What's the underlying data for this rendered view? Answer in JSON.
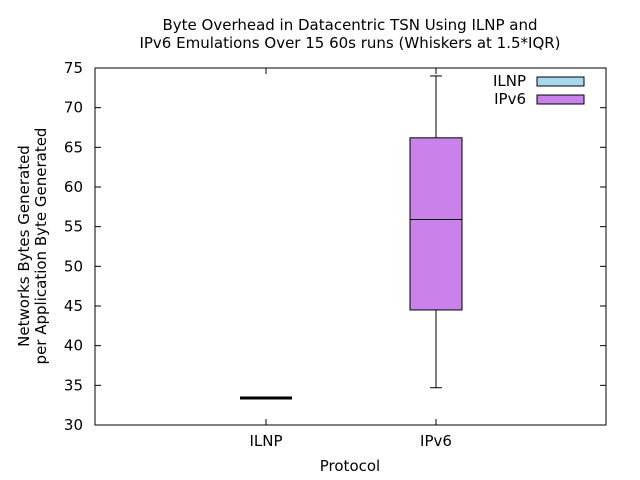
{
  "chart_data": {
    "type": "boxplot",
    "title": [
      "Byte Overhead in Datacentric TSN Using ILNP and",
      "IPv6 Emulations Over 15 60s runs (Whiskers at 1.5*IQR)"
    ],
    "xlabel": "Protocol",
    "ylabel": [
      "Networks Bytes Generated",
      "per Application Byte Generated"
    ],
    "categories": [
      "ILNP",
      "IPv6"
    ],
    "ylim": [
      30,
      75
    ],
    "yticks": [
      "30",
      "35",
      "40",
      "45",
      "50",
      "55",
      "60",
      "65",
      "70",
      "75"
    ],
    "grid": false,
    "legend_position": "top-right",
    "series": [
      {
        "name": "ILNP",
        "color": "#a6d8f0",
        "min": 33.4,
        "q1": 33.4,
        "median": 33.4,
        "q3": 33.4,
        "max": 33.4
      },
      {
        "name": "IPv6",
        "color": "#c882ea",
        "min": 34.7,
        "q1": 44.5,
        "median": 55.9,
        "q3": 66.2,
        "max": 74.0
      }
    ]
  }
}
